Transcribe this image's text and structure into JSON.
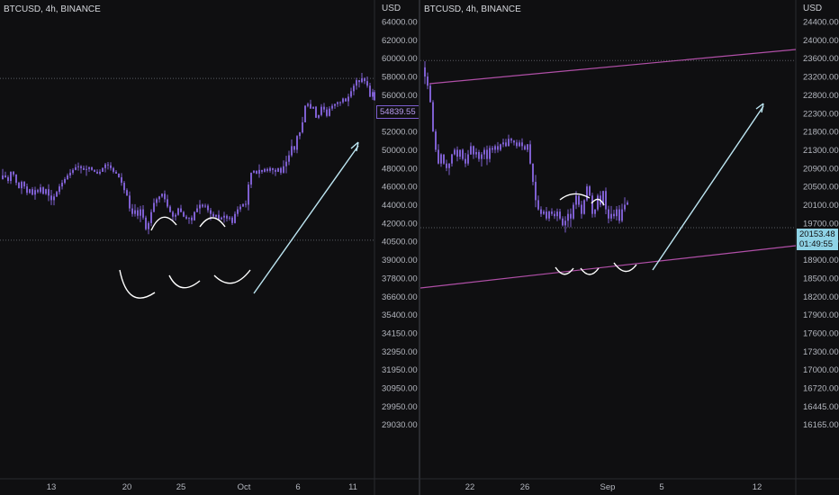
{
  "colors": {
    "background": "#0f0f11",
    "candles": "#7e5fd0",
    "annotation": "#ffffff",
    "arrow": "#bde6f2",
    "trendline": "#b04fa7",
    "dotted_line": "#5a5c63"
  },
  "chart_data": [
    {
      "type": "candlestick",
      "title": "BTCUSD, 4h, BINANCE",
      "symbol": "BTCUSD",
      "timeframe": "4h",
      "exchange": "BINANCE",
      "yaxis_unit": "USD",
      "y_ticks": [
        64000.0,
        62000.0,
        60000.0,
        58000.0,
        56000.0,
        54000.0,
        52000.0,
        50000.0,
        48000.0,
        46000.0,
        44000.0,
        42000.0,
        40500.0,
        39000.0,
        37800.0,
        36600.0,
        35400.0,
        34150.0,
        32950.0,
        31950.0,
        30950.0,
        29950.0,
        29030.0
      ],
      "y_tick_labels": [
        "64000.00",
        "62000.00",
        "60000.00",
        "58000.00",
        "56000.00",
        "54000.00",
        "52000.00",
        "50000.00",
        "48000.00",
        "46000.00",
        "44000.00",
        "42000.00",
        "40500.00",
        "39000.00",
        "37800.00",
        "36600.00",
        "35400.00",
        "34150.00",
        "32950.00",
        "31950.00",
        "30950.00",
        "29950.00",
        "29030.00"
      ],
      "x_tick_labels": [
        "13",
        "20",
        "25",
        "Oct",
        "6",
        "11"
      ],
      "current_price": "54839.55",
      "horizontal_levels": [
        57800,
        40600
      ],
      "close_path": [
        [
          0,
          46800
        ],
        [
          3,
          47200
        ],
        [
          6,
          47000
        ],
        [
          9,
          46600
        ],
        [
          12,
          47600
        ],
        [
          15,
          47300
        ],
        [
          18,
          46400
        ],
        [
          21,
          45800
        ],
        [
          24,
          46500
        ],
        [
          27,
          46000
        ],
        [
          30,
          45300
        ],
        [
          33,
          45700
        ],
        [
          36,
          45100
        ],
        [
          39,
          45600
        ],
        [
          42,
          45400
        ],
        [
          45,
          45900
        ],
        [
          48,
          45200
        ],
        [
          51,
          45700
        ],
        [
          54,
          45000
        ],
        [
          57,
          44500
        ],
        [
          60,
          44900
        ],
        [
          63,
          45400
        ],
        [
          66,
          46000
        ],
        [
          69,
          46400
        ],
        [
          72,
          46800
        ],
        [
          75,
          47200
        ],
        [
          78,
          47500
        ],
        [
          81,
          47800
        ],
        [
          84,
          48100
        ],
        [
          87,
          48200
        ],
        [
          90,
          48000
        ],
        [
          93,
          47800
        ],
        [
          96,
          47900
        ],
        [
          99,
          48100
        ],
        [
          102,
          47800
        ],
        [
          105,
          47600
        ],
        [
          108,
          47400
        ],
        [
          111,
          47600
        ],
        [
          114,
          48000
        ],
        [
          117,
          48400
        ],
        [
          120,
          48300
        ],
        [
          123,
          48000
        ],
        [
          126,
          47600
        ],
        [
          129,
          47400
        ],
        [
          132,
          47000
        ],
        [
          135,
          46400
        ],
        [
          138,
          45600
        ],
        [
          141,
          45000
        ],
        [
          144,
          43600
        ],
        [
          147,
          43000
        ],
        [
          150,
          43400
        ],
        [
          153,
          42800
        ],
        [
          156,
          43500
        ],
        [
          159,
          42600
        ],
        [
          162,
          41500
        ],
        [
          165,
          42000
        ],
        [
          168,
          43200
        ],
        [
          171,
          44200
        ],
        [
          174,
          44600
        ],
        [
          177,
          44900
        ],
        [
          180,
          45200
        ],
        [
          183,
          44600
        ],
        [
          186,
          43800
        ],
        [
          189,
          43200
        ],
        [
          192,
          42700
        ],
        [
          195,
          42900
        ],
        [
          198,
          43600
        ],
        [
          201,
          43200
        ],
        [
          204,
          42700
        ],
        [
          207,
          42500
        ],
        [
          210,
          42600
        ],
        [
          213,
          42300
        ],
        [
          216,
          43200
        ],
        [
          219,
          43600
        ],
        [
          222,
          44000
        ],
        [
          225,
          43800
        ],
        [
          228,
          43900
        ],
        [
          231,
          43400
        ],
        [
          234,
          43000
        ],
        [
          237,
          42700
        ],
        [
          240,
          42900
        ],
        [
          243,
          42400
        ],
        [
          246,
          42600
        ],
        [
          249,
          42800
        ],
        [
          252,
          42500
        ],
        [
          255,
          42600
        ],
        [
          258,
          42000
        ],
        [
          261,
          43000
        ],
        [
          264,
          43500
        ],
        [
          267,
          43800
        ],
        [
          270,
          44100
        ],
        [
          273,
          44000
        ],
        [
          276,
          46200
        ],
        [
          279,
          47500
        ],
        [
          282,
          47700
        ],
        [
          285,
          47400
        ],
        [
          288,
          47800
        ],
        [
          291,
          47600
        ],
        [
          294,
          47900
        ],
        [
          297,
          47700
        ],
        [
          300,
          48000
        ],
        [
          303,
          47800
        ],
        [
          306,
          47600
        ],
        [
          309,
          48000
        ],
        [
          312,
          47500
        ],
        [
          315,
          48200
        ],
        [
          318,
          48700
        ],
        [
          321,
          49400
        ],
        [
          324,
          50400
        ],
        [
          327,
          50000
        ],
        [
          330,
          51500
        ],
        [
          333,
          51900
        ],
        [
          336,
          53000
        ],
        [
          339,
          54800
        ],
        [
          342,
          55000
        ],
        [
          345,
          54500
        ],
        [
          348,
          54700
        ],
        [
          351,
          53500
        ],
        [
          354,
          53800
        ],
        [
          357,
          54700
        ],
        [
          360,
          54400
        ],
        [
          363,
          53700
        ],
        [
          366,
          54500
        ],
        [
          369,
          54800
        ],
        [
          372,
          55000
        ],
        [
          375,
          55200
        ],
        [
          378,
          55200
        ],
        [
          381,
          55600
        ],
        [
          384,
          55300
        ],
        [
          387,
          55800
        ],
        [
          390,
          56400
        ],
        [
          393,
          57000
        ],
        [
          396,
          57600
        ],
        [
          399,
          57400
        ],
        [
          402,
          57800
        ],
        [
          405,
          57500
        ],
        [
          408,
          57000
        ],
        [
          411,
          55800
        ],
        [
          414,
          56300
        ],
        [
          416,
          55400
        ]
      ]
    },
    {
      "type": "candlestick",
      "title": "BTCUSD, 4h, BINANCE",
      "symbol": "BTCUSD",
      "timeframe": "4h",
      "exchange": "BINANCE",
      "yaxis_unit": "USD",
      "y_ticks": [
        24400.0,
        24000.0,
        23600.0,
        23200.0,
        22800.0,
        22300.0,
        21800.0,
        21300.0,
        20900.0,
        20500.0,
        20100.0,
        19700.0,
        19300.0,
        18900.0,
        18500.0,
        18200.0,
        17900.0,
        17600.0,
        17300.0,
        17000.0,
        16720.0,
        16445.0,
        16165.0
      ],
      "y_tick_labels": [
        "24400.00",
        "24000.00",
        "23600.00",
        "23200.00",
        "22800.00",
        "22300.00",
        "21800.00",
        "21300.00",
        "20900.00",
        "20500.00",
        "20100.00",
        "19700.00",
        "19300.00",
        "18900.00",
        "18500.00",
        "18200.00",
        "17900.00",
        "17600.00",
        "17300.00",
        "17000.00",
        "16720.00",
        "16445.00",
        "16165.00"
      ],
      "x_tick_labels": [
        "22",
        "26",
        "Sep",
        "5",
        "12"
      ],
      "current_price": "20153.48",
      "countdown": "01:49:55",
      "horizontal_levels": [
        23550,
        19600
      ],
      "close_path": [
        [
          0,
          23400
        ],
        [
          3,
          23200
        ],
        [
          6,
          23000
        ],
        [
          9,
          22600
        ],
        [
          12,
          21800
        ],
        [
          15,
          21300
        ],
        [
          18,
          21000
        ],
        [
          21,
          21200
        ],
        [
          24,
          21000
        ],
        [
          27,
          20900
        ],
        [
          30,
          21000
        ],
        [
          33,
          21200
        ],
        [
          36,
          21300
        ],
        [
          39,
          21150
        ],
        [
          42,
          21300
        ],
        [
          45,
          21100
        ],
        [
          48,
          21000
        ],
        [
          51,
          21200
        ],
        [
          54,
          21400
        ],
        [
          57,
          21200
        ],
        [
          60,
          21250
        ],
        [
          63,
          21100
        ],
        [
          66,
          21200
        ],
        [
          69,
          21300
        ],
        [
          72,
          21100
        ],
        [
          75,
          21350
        ],
        [
          78,
          21300
        ],
        [
          81,
          21400
        ],
        [
          84,
          21300
        ],
        [
          87,
          21450
        ],
        [
          90,
          21500
        ],
        [
          93,
          21400
        ],
        [
          96,
          21600
        ],
        [
          99,
          21550
        ],
        [
          102,
          21500
        ],
        [
          105,
          21400
        ],
        [
          108,
          21500
        ],
        [
          111,
          21400
        ],
        [
          114,
          21300
        ],
        [
          117,
          21450
        ],
        [
          120,
          21000
        ],
        [
          123,
          20600
        ],
        [
          126,
          20200
        ],
        [
          129,
          20000
        ],
        [
          132,
          19900
        ],
        [
          135,
          19950
        ],
        [
          138,
          19800
        ],
        [
          141,
          19950
        ],
        [
          144,
          19900
        ],
        [
          147,
          19850
        ],
        [
          150,
          19950
        ],
        [
          153,
          19800
        ],
        [
          156,
          19650
        ],
        [
          159,
          19750
        ],
        [
          162,
          19900
        ],
        [
          165,
          19800
        ],
        [
          168,
          20100
        ],
        [
          171,
          20300
        ],
        [
          174,
          20100
        ],
        [
          177,
          19900
        ],
        [
          180,
          20200
        ],
        [
          183,
          20500
        ],
        [
          186,
          20300
        ],
        [
          189,
          19900
        ],
        [
          192,
          20000
        ],
        [
          195,
          20300
        ],
        [
          198,
          20100
        ],
        [
          201,
          20400
        ],
        [
          204,
          20000
        ],
        [
          207,
          19800
        ],
        [
          210,
          19900
        ],
        [
          213,
          19850
        ],
        [
          216,
          20000
        ],
        [
          219,
          19750
        ],
        [
          222,
          20000
        ],
        [
          225,
          20100
        ],
        [
          228,
          20150
        ]
      ]
    }
  ]
}
